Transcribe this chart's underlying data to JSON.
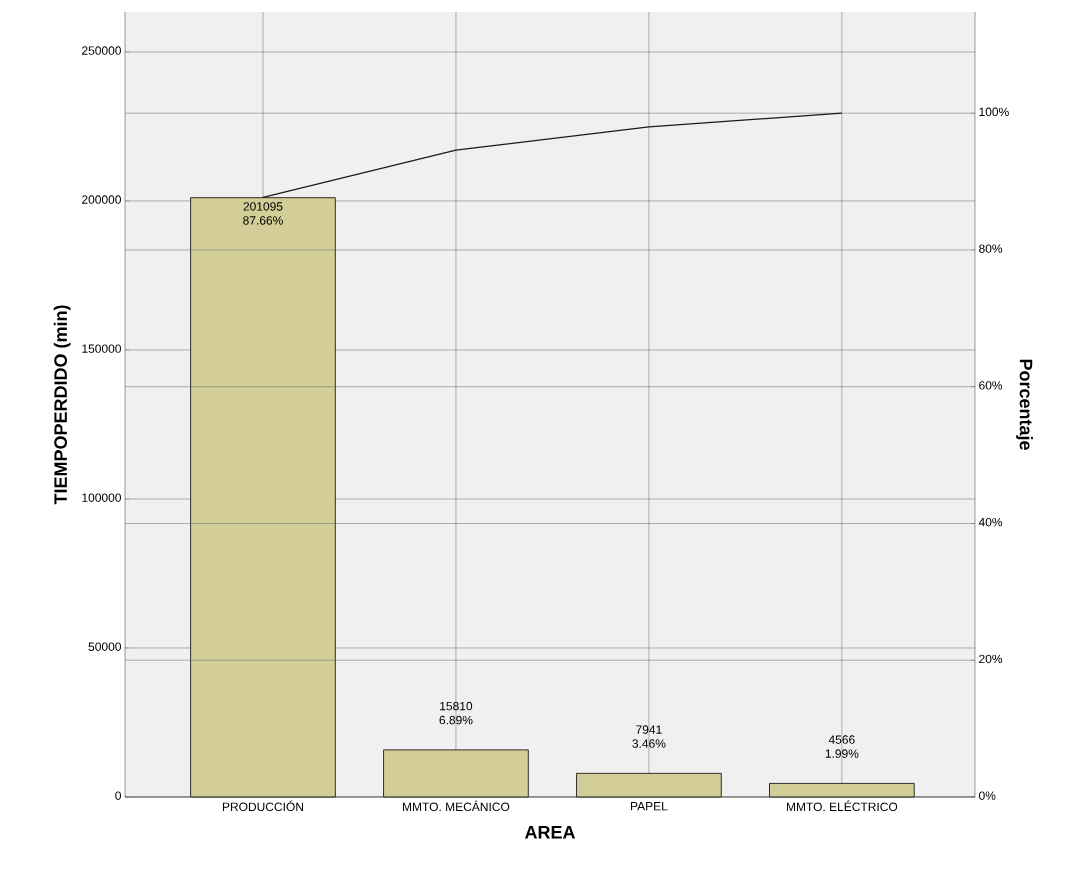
{
  "chart_data": {
    "type": "bar",
    "xlabel": "AREA",
    "ylabel": "TIEMPOPERDIDO (min)",
    "y2label": "Porcentaje",
    "categories": [
      "PRODUCCIÓN",
      "MMTO. MECÁNICO",
      "PAPEL",
      "MMTO. ELÉCTRICO"
    ],
    "series": [
      {
        "color": "#d3ce97",
        "values": [
          201095,
          15810,
          7941,
          4566
        ],
        "value_labels": [
          "201095 87.66%",
          "15810 6.89%",
          "7941 3.46%",
          "4566 1.99%"
        ]
      },
      {
        "type": "line",
        "axis": "y2",
        "color": "#1a1a1a",
        "values": [
          87.7,
          94.6,
          98.0,
          100
        ]
      }
    ],
    "ylim": [
      0,
      263400
    ],
    "yticks": [
      0,
      50000,
      100000,
      150000,
      200000,
      250000
    ],
    "y2lim": [
      0,
      114.8
    ],
    "y2ticks": [
      {
        "value": 0,
        "label": "0%"
      },
      {
        "value": 20,
        "label": "20%"
      },
      {
        "value": 40,
        "label": "40%"
      },
      {
        "value": 60,
        "label": "60%"
      },
      {
        "value": 80,
        "label": "80%"
      },
      {
        "value": 100,
        "label": "100%"
      }
    ],
    "grid": true
  }
}
